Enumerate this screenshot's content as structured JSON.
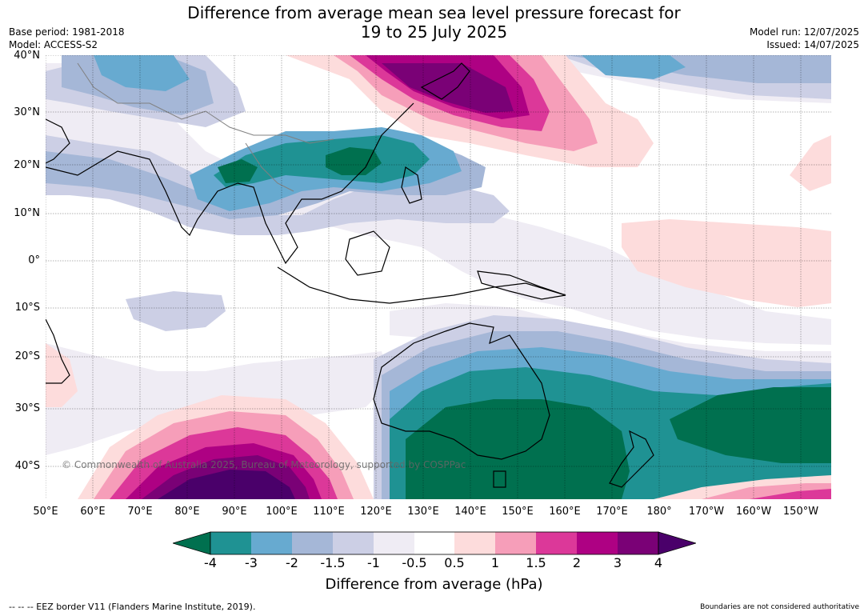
{
  "header": {
    "title_line1": "Difference from average mean sea level pressure forecast for",
    "title_line2": "19 to 25 July 2025",
    "base_period": "Base period: 1981-2018",
    "model": "Model: ACCESS-S2",
    "model_run": "Model run: 12/07/2025",
    "issued": "Issued: 14/07/2025"
  },
  "axes": {
    "lat_labels": [
      "40°N",
      "30°N",
      "20°N",
      "10°N",
      "0°",
      "10°S",
      "20°S",
      "30°S",
      "40°S"
    ],
    "lon_labels": [
      "50°E",
      "60°E",
      "70°E",
      "80°E",
      "90°E",
      "100°E",
      "110°E",
      "120°E",
      "130°E",
      "140°E",
      "150°E",
      "160°E",
      "170°E",
      "180°",
      "170°W",
      "160°W",
      "150°W"
    ]
  },
  "copyright": "© Commonwealth of Australia 2025, Bureau of Meteorology, supported by COSPPac",
  "colorbar": {
    "title": "Difference from average (hPa)",
    "tick_labels": [
      "-4",
      "-3",
      "-2",
      "-1.5",
      "-1",
      "-0.5",
      "0.5",
      "1",
      "1.5",
      "2",
      "3",
      "4"
    ],
    "colors": {
      "lt_-4": "#00704f",
      "-4_-3": "#1f9293",
      "-3_-2": "#67aad0",
      "-2_-1.5": "#a5b7d7",
      "-1.5_-1": "#cccfe5",
      "-1_-0.5": "#efecf4",
      "-0.5_0.5": "#ffffff",
      "0.5_1": "#fddcdc",
      "1_1.5": "#f69eb9",
      "1.5_2": "#dc3899",
      "2_3": "#ae0183",
      "3_4": "#7a0176",
      "gt_4": "#4a006a"
    }
  },
  "footer": {
    "eez": "--  --  -- EEZ border V11 (Flanders Marine Institute, 2019).",
    "boundaries": "Boundaries are not considered authoritative"
  }
}
